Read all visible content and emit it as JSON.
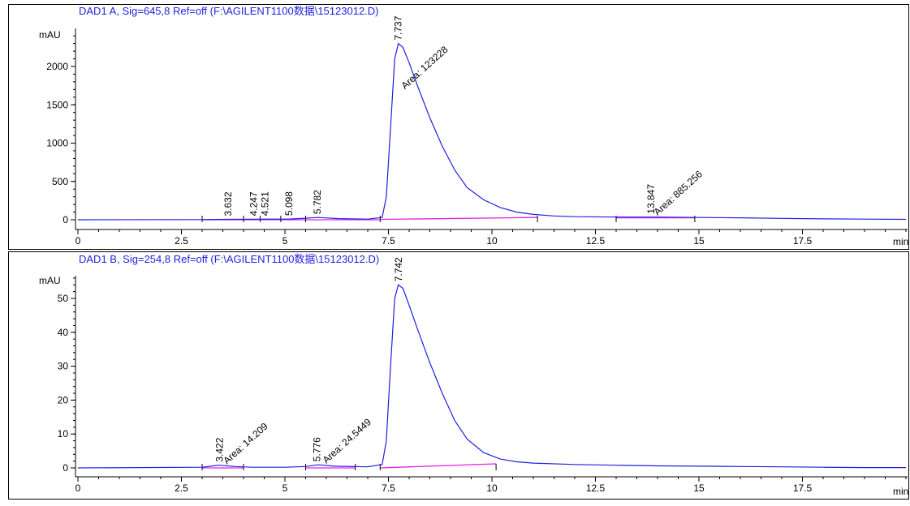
{
  "colors": {
    "signal": "#1f1fe0",
    "baseline": "#e020e0",
    "axis": "#000000",
    "title": "#1f1fe0"
  },
  "chart_data": [
    {
      "type": "line",
      "title": "DAD1 A, Sig=645,8 Ref=off (F:\\AGILENT1100数据\\15123012.D)",
      "ylabel": "mAU",
      "xlabel": "min",
      "xlim": [
        0,
        20
      ],
      "ylim": [
        -100,
        2500
      ],
      "x_ticks": [
        0,
        2.5,
        5,
        7.5,
        10,
        12.5,
        15,
        17.5
      ],
      "x_tick_labels": [
        "0",
        "2.5",
        "5",
        "7.5",
        "10",
        "12.5",
        "15",
        "17.5"
      ],
      "y_ticks": [
        0,
        500,
        1000,
        1500,
        2000
      ],
      "y_tick_labels": [
        "0",
        "500",
        "1000",
        "1500",
        "2000"
      ],
      "series": [
        {
          "x": [
            0,
            3,
            3.6,
            4.2,
            4.5,
            5.1,
            5.5,
            5.8,
            6.3,
            7.0,
            7.35,
            7.45,
            7.55,
            7.65,
            7.74,
            7.85,
            8.0,
            8.2,
            8.5,
            8.8,
            9.1,
            9.4,
            9.8,
            10.2,
            10.6,
            11.0,
            11.5,
            12.0,
            13.0,
            14.0,
            15.0,
            16.0,
            17.0,
            18.0,
            19.0,
            20.0
          ],
          "y": [
            0,
            2,
            5,
            6,
            8,
            10,
            20,
            30,
            15,
            8,
            30,
            300,
            1200,
            2100,
            2300,
            2250,
            2050,
            1750,
            1330,
            960,
            650,
            420,
            260,
            160,
            100,
            70,
            50,
            40,
            35,
            35,
            30,
            25,
            18,
            12,
            8,
            5
          ]
        }
      ],
      "peaks": [
        {
          "rt": "3.632",
          "x": 3.632
        },
        {
          "rt": "4.247",
          "x": 4.247
        },
        {
          "rt": "4.521",
          "x": 4.521
        },
        {
          "rt": "5.098",
          "x": 5.098
        },
        {
          "rt": "5.782",
          "x": 5.782
        },
        {
          "rt": "7.737",
          "x": 7.737
        },
        {
          "rt": "13.847",
          "x": 13.847
        }
      ],
      "area_labels": [
        {
          "text": "Area: 123228",
          "x": 7.9,
          "y": 1700
        },
        {
          "text": "Area: 885.256",
          "x": 14.0,
          "y": 50
        }
      ],
      "baselines": [
        {
          "x": [
            3.0,
            7.3
          ],
          "y": [
            0,
            0
          ]
        },
        {
          "x": [
            7.3,
            11.1
          ],
          "y": [
            5,
            30
          ]
        },
        {
          "x": [
            13.0,
            14.9
          ],
          "y": [
            25,
            25
          ]
        }
      ],
      "integration_marks": [
        3.0,
        4.0,
        4.4,
        4.9,
        5.5,
        7.3,
        11.1,
        13.0,
        14.9
      ]
    },
    {
      "type": "line",
      "title": "DAD1 B, Sig=254,8 Ref=off (F:\\AGILENT1100数据\\15123012.D)",
      "ylabel": "mAU",
      "xlabel": "min",
      "xlim": [
        0,
        20
      ],
      "ylim": [
        -2,
        57
      ],
      "x_ticks": [
        0,
        2.5,
        5,
        7.5,
        10,
        12.5,
        15,
        17.5
      ],
      "x_tick_labels": [
        "0",
        "2.5",
        "5",
        "7.5",
        "10",
        "12.5",
        "15",
        "17.5"
      ],
      "y_ticks": [
        0,
        10,
        20,
        30,
        40,
        50
      ],
      "y_tick_labels": [
        "0",
        "10",
        "20",
        "30",
        "40",
        "50"
      ],
      "series": [
        {
          "x": [
            0,
            3,
            3.4,
            3.8,
            4.2,
            5.0,
            5.5,
            5.8,
            6.2,
            7.0,
            7.35,
            7.45,
            7.55,
            7.65,
            7.74,
            7.85,
            8.0,
            8.2,
            8.5,
            8.8,
            9.1,
            9.4,
            9.8,
            10.2,
            10.6,
            11.0,
            12.0,
            13.0,
            14.0,
            15.0,
            16.0,
            17.0,
            18.0,
            19.0,
            20.0
          ],
          "y": [
            0,
            0.2,
            0.8,
            0.4,
            0.2,
            0.2,
            0.4,
            0.9,
            0.5,
            0.3,
            1,
            8,
            30,
            50,
            54,
            53,
            48,
            41,
            31,
            22,
            14,
            8.5,
            4.5,
            2.6,
            1.8,
            1.4,
            1.0,
            0.8,
            0.6,
            0.5,
            0.4,
            0.3,
            0.2,
            0.1,
            0.1
          ]
        }
      ],
      "peaks": [
        {
          "rt": "3.422",
          "x": 3.422
        },
        {
          "rt": "5.776",
          "x": 5.776
        },
        {
          "rt": "7.742",
          "x": 7.742
        }
      ],
      "area_labels": [
        {
          "text": "Area: 14.209",
          "x": 3.6,
          "y": 1.0
        },
        {
          "text": "Area: 24.5449",
          "x": 6.0,
          "y": 1.2
        }
      ],
      "baselines": [
        {
          "x": [
            3.0,
            4.0
          ],
          "y": [
            0,
            0
          ]
        },
        {
          "x": [
            5.5,
            6.7
          ],
          "y": [
            0,
            0
          ]
        },
        {
          "x": [
            7.3,
            10.1
          ],
          "y": [
            0,
            1.2
          ]
        }
      ],
      "integration_marks": [
        3.0,
        4.0,
        5.5,
        6.7,
        7.3,
        10.1
      ]
    }
  ]
}
